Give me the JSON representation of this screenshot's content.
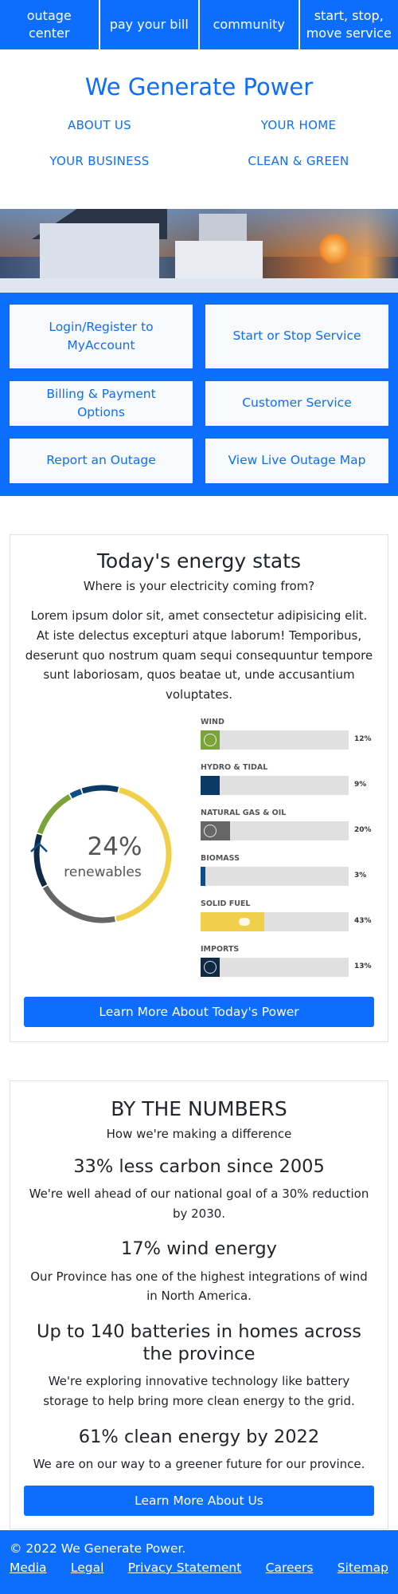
{
  "nav": [
    "outage center",
    "pay your bill",
    "community",
    "start, stop,\nmove service"
  ],
  "brand": "We Generate Power",
  "subnav": [
    "ABOUT US",
    "YOUR HOME",
    "YOUR BUSINESS",
    "CLEAN & GREEN"
  ],
  "quick_links": [
    "Login/Register to MyAccount",
    "Start or Stop Service",
    "Billing & Payment Options",
    "Customer Service",
    "Report an Outage",
    "View Live Outage Map"
  ],
  "stats": {
    "title": "Today's energy stats",
    "subtitle": "Where is your electricity coming from?",
    "paragraph": "Lorem ipsum dolor sit, amet consectetur adipisicing elit. At iste delectus excepturi atque laborum! Temporibus, deserunt quo nostrum quam sequi consequuntur tempore sunt laboriosam, quos beatae ut, unde accusantium voluptates.",
    "donut_value": "24%",
    "donut_caption": "renewables",
    "button": "Learn More About Today's Power"
  },
  "chart_data": {
    "type": "bar",
    "title": "Today's energy stats",
    "categories": [
      "WIND",
      "HYDRO & TIDAL",
      "NATURAL GAS & OIL",
      "BIOMASS",
      "SOLID FUEL",
      "IMPORTS"
    ],
    "values": [
      12,
      9,
      20,
      3,
      43,
      13
    ],
    "labels": [
      "12%",
      "9%",
      "20%",
      "3%",
      "43%",
      "13%"
    ],
    "colors": [
      "#7aa33a",
      "#0b3a66",
      "#666666",
      "#0b4f8a",
      "#f0d04a",
      "#0e2a45"
    ],
    "ylim": [
      0,
      100
    ]
  },
  "numbers": {
    "title": "BY THE NUMBERS",
    "subtitle": "How we're making a difference",
    "facts": [
      {
        "title": "33% less carbon since 2005",
        "text": "We're well ahead of our national goal of a 30% reduction by 2030."
      },
      {
        "title": "17% wind energy",
        "text": "Our Province has one of the highest integrations of wind in North America."
      },
      {
        "title": "Up to 140 batteries in homes across the province",
        "text": "We're exploring innovative technology like battery storage to help bring more clean energy to the grid."
      },
      {
        "title": "61% clean energy by 2022",
        "text": "We are on our way to a greener future for our province."
      }
    ],
    "button": "Learn More About Us"
  },
  "footer": {
    "copyright": "© 2022 We Generate Power.",
    "links": [
      "Media",
      "Legal",
      "Privacy Statement",
      "Careers",
      "Sitemap"
    ]
  }
}
